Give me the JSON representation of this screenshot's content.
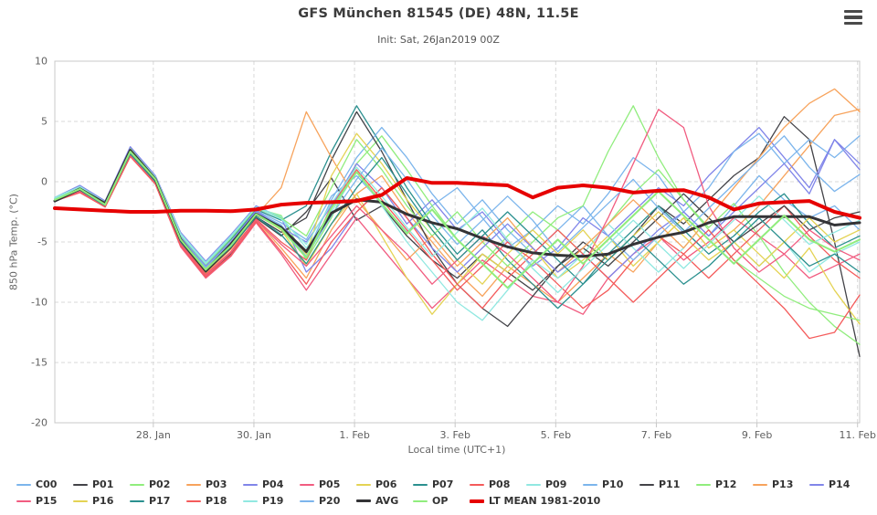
{
  "header": {
    "menu_icon": "hamburger"
  },
  "chart_data": {
    "type": "line",
    "title": "GFS München 81545 (DE) 48N, 11.5E",
    "subtitle": "Init: Sat, 26Jan2019 00Z",
    "xlabel": "Local time (UTC+1)",
    "ylabel": "850 hPa Temp. (°C)",
    "ylim": [
      -20,
      10
    ],
    "y_ticks": [
      10,
      5,
      0,
      -5,
      -10,
      -15,
      -20
    ],
    "xlim_hours": [
      0,
      384
    ],
    "x_unit": "hours since init 26Jan2019 00Z",
    "x_step_hours": 12,
    "x_ticks": [
      {
        "t": 47,
        "label": "28. Jan"
      },
      {
        "t": 95,
        "label": "30. Jan"
      },
      {
        "t": 143,
        "label": "1. Feb"
      },
      {
        "t": 191,
        "label": "3. Feb"
      },
      {
        "t": 239,
        "label": "5. Feb"
      },
      {
        "t": 287,
        "label": "7. Feb"
      },
      {
        "t": 335,
        "label": "9. Feb"
      },
      {
        "t": 383,
        "label": "11. Feb"
      }
    ],
    "grid": true,
    "legend_position": "bottom",
    "styles": {
      "grid_color": "#d8d8d8",
      "border_color": "#c8c8c8",
      "tick_label_color": "#606060",
      "title_color": "#3c3c3c",
      "subtitle_color": "#555555",
      "legend_text_color": "#333333"
    },
    "series": [
      {
        "name": "C00",
        "color": "#7cb5ec",
        "width": 1.3,
        "values": [
          -1.5,
          -0.5,
          -1.8,
          2.5,
          0.2,
          -4.6,
          -7.0,
          -5.0,
          -2.4,
          -3.4,
          -4.8,
          -1.2,
          0.5,
          -1.8,
          -4.2,
          -2.0,
          -0.5,
          -3.0,
          -5.5,
          -4.0,
          -2.0,
          -3.5,
          -1.0,
          2.0,
          0.5,
          -2.5,
          -4.5,
          -2.0,
          0.5,
          -1.5,
          -3.0,
          -2.0,
          -4.0
        ]
      },
      {
        "name": "P01",
        "color": "#434348",
        "width": 1.3,
        "values": [
          -1.6,
          -0.8,
          -2.0,
          2.2,
          0.0,
          -5.2,
          -7.8,
          -6.0,
          -3.0,
          -4.5,
          -2.5,
          0.3,
          -3.2,
          -2.0,
          -4.5,
          -6.5,
          -8.0,
          -6.0,
          -7.5,
          -9.0,
          -7.0,
          -5.0,
          -6.5,
          -4.5,
          -2.0,
          -3.5,
          -1.5,
          0.5,
          2.0,
          5.4,
          3.5,
          -5.0,
          -14.5
        ]
      },
      {
        "name": "P02",
        "color": "#90ed7d",
        "width": 1.3,
        "values": [
          -1.4,
          -0.4,
          -1.7,
          2.8,
          0.4,
          -4.4,
          -6.8,
          -4.6,
          -2.2,
          -2.8,
          -6.5,
          -3.0,
          1.5,
          3.8,
          1.0,
          -2.0,
          -4.8,
          -6.8,
          -4.5,
          -2.5,
          -4.0,
          -6.0,
          -3.5,
          -1.0,
          1.0,
          -1.5,
          -3.8,
          -1.8,
          -4.5,
          -7.5,
          -10.0,
          -12.0,
          -13.5
        ]
      },
      {
        "name": "P03",
        "color": "#f7a35c",
        "width": 1.3,
        "values": [
          -1.5,
          -0.7,
          -2.0,
          2.3,
          0.0,
          -5.0,
          -7.6,
          -5.6,
          -3.2,
          -5.5,
          -8.0,
          -4.0,
          -1.0,
          0.5,
          -2.5,
          -5.0,
          -7.5,
          -9.5,
          -7.0,
          -8.5,
          -10.0,
          -8.0,
          -6.0,
          -7.5,
          -5.0,
          -3.0,
          -5.5,
          -4.0,
          -2.0,
          0.5,
          3.0,
          5.5,
          6.0
        ]
      },
      {
        "name": "P04",
        "color": "#8085e9",
        "width": 1.3,
        "values": [
          -1.3,
          -0.3,
          -1.6,
          2.9,
          0.5,
          -4.2,
          -6.6,
          -4.4,
          -2.0,
          -3.0,
          -7.5,
          -5.5,
          -2.5,
          -0.5,
          -3.5,
          -1.5,
          -4.0,
          -2.5,
          -5.0,
          -7.0,
          -5.5,
          -3.0,
          -4.5,
          -2.5,
          -0.5,
          -2.0,
          0.5,
          2.5,
          4.5,
          2.0,
          -0.5,
          3.5,
          1.0
        ]
      },
      {
        "name": "P05",
        "color": "#f15c80",
        "width": 1.3,
        "values": [
          -1.6,
          -0.9,
          -2.1,
          2.1,
          -0.2,
          -5.4,
          -8.0,
          -6.2,
          -3.4,
          -6.0,
          -9.0,
          -6.0,
          -3.0,
          -5.5,
          -8.0,
          -10.5,
          -8.5,
          -6.5,
          -8.0,
          -9.5,
          -10.0,
          -11.0,
          -8.0,
          -6.0,
          -4.5,
          -6.5,
          -5.0,
          -3.0,
          -4.5,
          -6.0,
          -8.0,
          -7.0,
          -6.0
        ]
      },
      {
        "name": "P06",
        "color": "#e4d354",
        "width": 1.3,
        "values": [
          -1.5,
          -0.6,
          -1.9,
          2.4,
          0.1,
          -4.8,
          -7.2,
          -5.2,
          -2.6,
          -4.0,
          -7.0,
          -3.5,
          -1.0,
          -4.5,
          -8.0,
          -11.0,
          -8.5,
          -6.0,
          -7.5,
          -5.5,
          -8.0,
          -6.5,
          -4.5,
          -7.0,
          -5.0,
          -3.0,
          -5.5,
          -4.0,
          -6.0,
          -8.0,
          -5.5,
          -9.0,
          -11.8
        ]
      },
      {
        "name": "P07",
        "color": "#2b908f",
        "width": 1.3,
        "values": [
          -1.4,
          -0.5,
          -1.8,
          2.6,
          0.3,
          -4.5,
          -6.9,
          -4.8,
          -2.3,
          -3.2,
          -2.0,
          2.5,
          6.3,
          3.0,
          -0.5,
          -3.5,
          -6.0,
          -4.0,
          -6.5,
          -8.5,
          -10.5,
          -8.5,
          -6.0,
          -4.0,
          -2.0,
          -4.0,
          -6.0,
          -4.5,
          -2.5,
          -1.0,
          -3.5,
          -5.5,
          -4.5
        ]
      },
      {
        "name": "P08",
        "color": "#f45b5b",
        "width": 1.3,
        "values": [
          -1.6,
          -0.8,
          -2.0,
          2.2,
          -0.1,
          -5.1,
          -7.7,
          -5.8,
          -3.1,
          -5.0,
          -6.5,
          -2.0,
          1.0,
          -1.5,
          -4.0,
          -6.5,
          -9.0,
          -7.0,
          -5.0,
          -6.5,
          -8.5,
          -10.5,
          -9.0,
          -6.5,
          -4.5,
          -6.0,
          -8.0,
          -6.0,
          -4.0,
          -2.0,
          -4.5,
          -6.5,
          -8.0
        ]
      },
      {
        "name": "P09",
        "color": "#91e8e1",
        "width": 1.3,
        "values": [
          -1.3,
          -0.4,
          -1.7,
          2.7,
          0.4,
          -4.3,
          -6.7,
          -4.5,
          -2.1,
          -2.9,
          -5.5,
          -2.5,
          0.8,
          -2.0,
          -5.0,
          -7.5,
          -10.0,
          -11.5,
          -9.0,
          -6.5,
          -8.0,
          -6.0,
          -3.5,
          -5.5,
          -7.5,
          -5.5,
          -3.0,
          -5.0,
          -7.0,
          -5.0,
          -7.5,
          -6.0,
          -5.0
        ]
      },
      {
        "name": "P10",
        "color": "#7cb5ec",
        "width": 1.3,
        "values": [
          -1.5,
          -0.6,
          -1.9,
          2.4,
          0.1,
          -4.7,
          -7.1,
          -5.1,
          -2.5,
          -3.6,
          -6.0,
          -1.5,
          2.0,
          4.5,
          2.0,
          -1.0,
          -3.5,
          -1.5,
          -4.0,
          -6.0,
          -4.0,
          -2.0,
          -4.5,
          -6.5,
          -4.5,
          -2.5,
          -0.5,
          2.5,
          4.0,
          1.5,
          3.5,
          2.0,
          3.8
        ]
      },
      {
        "name": "P11",
        "color": "#434348",
        "width": 1.3,
        "values": [
          -1.6,
          -0.7,
          -2.0,
          2.3,
          0.0,
          -5.0,
          -7.5,
          -5.5,
          -2.9,
          -4.2,
          -3.0,
          1.8,
          5.8,
          2.5,
          -1.5,
          -5.5,
          -8.5,
          -10.5,
          -12.0,
          -9.5,
          -7.0,
          -5.5,
          -7.0,
          -5.0,
          -3.0,
          -1.0,
          -3.0,
          -5.0,
          -3.5,
          -2.0,
          -4.0,
          -3.0,
          -2.5
        ]
      },
      {
        "name": "P12",
        "color": "#90ed7d",
        "width": 1.3,
        "values": [
          -1.4,
          -0.5,
          -1.8,
          2.7,
          0.3,
          -4.5,
          -6.9,
          -4.7,
          -2.2,
          -3.0,
          -4.5,
          -0.5,
          3.5,
          1.0,
          -2.0,
          -4.5,
          -2.5,
          -5.0,
          -7.0,
          -5.0,
          -3.0,
          -2.0,
          2.5,
          6.3,
          2.0,
          -1.5,
          -4.0,
          -6.5,
          -8.0,
          -9.5,
          -10.5,
          -11.0,
          -11.5
        ]
      },
      {
        "name": "P13",
        "color": "#f7a35c",
        "width": 1.3,
        "values": [
          -1.5,
          -0.7,
          -2.0,
          2.3,
          0.0,
          -4.9,
          -7.3,
          -5.3,
          -2.8,
          -0.5,
          5.8,
          2.0,
          -1.5,
          -4.0,
          -6.5,
          -4.5,
          -7.0,
          -5.0,
          -3.0,
          -5.5,
          -7.5,
          -5.5,
          -3.5,
          -1.5,
          -3.5,
          -5.5,
          -3.0,
          -0.5,
          2.0,
          4.5,
          6.5,
          7.7,
          5.8
        ]
      },
      {
        "name": "P14",
        "color": "#8085e9",
        "width": 1.3,
        "values": [
          -1.4,
          -0.6,
          -1.9,
          2.5,
          0.2,
          -4.6,
          -7.0,
          -5.0,
          -2.4,
          -3.8,
          -5.0,
          -2.0,
          1.5,
          -0.5,
          -3.0,
          -5.5,
          -7.5,
          -5.5,
          -3.5,
          -5.5,
          -7.5,
          -6.0,
          -8.0,
          -6.0,
          -4.0,
          -2.5,
          -4.5,
          -2.5,
          -0.5,
          1.5,
          -1.0,
          3.5,
          1.5
        ]
      },
      {
        "name": "P15",
        "color": "#f15c80",
        "width": 1.3,
        "values": [
          -1.6,
          -0.8,
          -2.1,
          2.2,
          -0.1,
          -5.2,
          -7.8,
          -5.9,
          -3.2,
          -5.2,
          -7.0,
          -4.5,
          -2.0,
          -4.0,
          -6.0,
          -8.5,
          -6.5,
          -4.5,
          -6.0,
          -8.0,
          -10.0,
          -7.0,
          -3.0,
          1.5,
          6.0,
          4.5,
          -2.0,
          -5.5,
          -7.5,
          -6.0,
          -4.0,
          -5.5,
          -6.5
        ]
      },
      {
        "name": "P16",
        "color": "#e4d354",
        "width": 1.3,
        "values": [
          -1.5,
          -0.6,
          -1.9,
          2.4,
          0.1,
          -4.8,
          -7.2,
          -5.2,
          -2.7,
          -4.0,
          -6.0,
          0.5,
          4.0,
          1.5,
          -1.5,
          -4.0,
          -6.5,
          -8.5,
          -6.0,
          -4.0,
          -6.0,
          -4.0,
          -6.5,
          -4.5,
          -2.5,
          -4.5,
          -6.5,
          -5.0,
          -7.0,
          -5.0,
          -3.0,
          -5.0,
          -4.0
        ]
      },
      {
        "name": "P17",
        "color": "#2b908f",
        "width": 1.3,
        "values": [
          -1.5,
          -0.7,
          -2.0,
          2.3,
          0.0,
          -5.0,
          -7.4,
          -5.4,
          -2.9,
          -4.4,
          -6.8,
          -3.5,
          -0.5,
          2.0,
          -1.0,
          -4.0,
          -6.5,
          -4.5,
          -2.5,
          -4.5,
          -6.5,
          -8.5,
          -6.5,
          -4.5,
          -6.5,
          -8.5,
          -7.0,
          -5.0,
          -3.0,
          -5.0,
          -7.0,
          -6.0,
          -7.5
        ]
      },
      {
        "name": "P18",
        "color": "#f45b5b",
        "width": 1.3,
        "values": [
          -1.6,
          -0.9,
          -2.1,
          2.1,
          -0.2,
          -5.3,
          -7.9,
          -6.1,
          -3.3,
          -5.8,
          -8.5,
          -5.0,
          -2.5,
          -0.5,
          -3.0,
          -6.0,
          -8.5,
          -10.5,
          -8.0,
          -6.0,
          -4.0,
          -6.0,
          -8.0,
          -10.0,
          -8.0,
          -6.0,
          -4.0,
          -6.5,
          -8.5,
          -10.5,
          -13.0,
          -12.5,
          -9.4
        ]
      },
      {
        "name": "P19",
        "color": "#91e8e1",
        "width": 1.3,
        "values": [
          -1.4,
          -0.5,
          -1.8,
          2.6,
          0.3,
          -4.4,
          -6.8,
          -4.6,
          -2.1,
          -3.1,
          -5.2,
          -1.8,
          1.2,
          -1.2,
          -3.8,
          -6.2,
          -4.2,
          -2.2,
          -4.8,
          -7.2,
          -9.2,
          -7.2,
          -5.2,
          -3.2,
          -5.2,
          -7.2,
          -5.2,
          -3.2,
          -1.2,
          -3.2,
          -5.2,
          -4.2,
          -3.2
        ]
      },
      {
        "name": "P20",
        "color": "#7cb5ec",
        "width": 1.3,
        "values": [
          -1.5,
          -0.6,
          -1.9,
          2.5,
          0.2,
          -4.7,
          -7.1,
          -5.1,
          -2.6,
          -3.7,
          -6.2,
          -2.8,
          0.2,
          2.8,
          0.2,
          -2.8,
          -5.2,
          -3.2,
          -1.2,
          -3.2,
          -5.8,
          -3.8,
          -1.8,
          0.2,
          -2.2,
          -4.2,
          -2.2,
          -0.2,
          1.8,
          3.8,
          1.2,
          -0.8,
          0.6
        ]
      },
      {
        "name": "AVG",
        "color": "#333336",
        "width": 3,
        "values": [
          -1.6,
          -0.6,
          -1.8,
          2.6,
          0.2,
          -4.8,
          -7.4,
          -5.2,
          -2.7,
          -3.8,
          -5.8,
          -2.6,
          -1.5,
          -1.7,
          -2.7,
          -3.4,
          -3.9,
          -4.7,
          -5.4,
          -5.9,
          -6.1,
          -6.2,
          -6.0,
          -5.2,
          -4.6,
          -4.2,
          -3.4,
          -2.9,
          -2.9,
          -2.9,
          -2.9,
          -3.6,
          -3.4
        ]
      },
      {
        "name": "OP",
        "color": "#90ed7d",
        "width": 2,
        "values": [
          -1.5,
          -0.6,
          -1.9,
          2.5,
          0.2,
          -4.8,
          -7.3,
          -5.3,
          -2.7,
          -3.9,
          -6.3,
          -2.2,
          0.8,
          -1.8,
          -4.3,
          -2.3,
          -4.8,
          -6.8,
          -8.8,
          -6.8,
          -4.8,
          -6.8,
          -4.8,
          -2.8,
          -0.8,
          -2.8,
          -4.8,
          -6.8,
          -4.8,
          -2.8,
          -4.8,
          -5.8,
          -4.8
        ]
      },
      {
        "name": "LT MEAN 1981-2010",
        "color": "#e60000",
        "width": 4,
        "values": [
          -2.2,
          -2.3,
          -2.4,
          -2.5,
          -2.5,
          -2.4,
          -2.4,
          -2.45,
          -2.3,
          -1.9,
          -1.75,
          -1.7,
          -1.6,
          -1.1,
          0.3,
          -0.1,
          -0.1,
          -0.2,
          -0.3,
          -1.3,
          -0.5,
          -0.3,
          -0.5,
          -0.9,
          -0.75,
          -0.7,
          -1.3,
          -2.3,
          -1.8,
          -1.7,
          -1.6,
          -2.5,
          -3.0
        ]
      }
    ]
  }
}
